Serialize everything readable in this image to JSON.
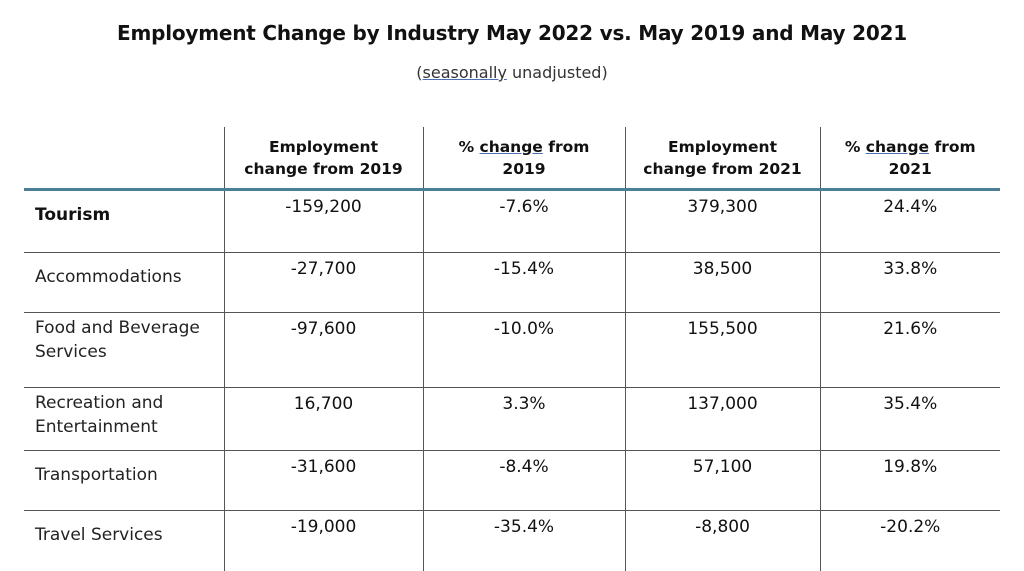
{
  "title": "Employment Change by Industry May 2022 vs. May 2019 and May 2021",
  "subtitle": {
    "underlined": "seasonally",
    "rest": " unadjusted"
  },
  "table": {
    "headers": [
      {
        "line1": "Employment",
        "line2": "change from 2019"
      },
      {
        "line1": "% change from",
        "line2": "2019"
      },
      {
        "line1": "Employment",
        "line2": "change from 2021"
      },
      {
        "line1": "% change from",
        "line2": "2021"
      }
    ],
    "rows": [
      {
        "industry": "Tourism",
        "change_2019": "-159,200",
        "pct_2019": "-7.6%",
        "change_2021": "379,300",
        "pct_2021": "24.4%"
      },
      {
        "industry": "Accommodations",
        "change_2019": "-27,700",
        "pct_2019": "-15.4%",
        "change_2021": "38,500",
        "pct_2021": "33.8%"
      },
      {
        "industry": "Food and Beverage Services",
        "change_2019": "-97,600",
        "pct_2019": "-10.0%",
        "change_2021": "155,500",
        "pct_2021": "21.6%"
      },
      {
        "industry": "Recreation and Entertainment",
        "change_2019": "16,700",
        "pct_2019": "3.3%",
        "change_2021": "137,000",
        "pct_2021": "35.4%"
      },
      {
        "industry": "Transportation",
        "change_2019": "-31,600",
        "pct_2019": "-8.4%",
        "change_2021": "57,100",
        "pct_2021": "19.8%"
      },
      {
        "industry": "Travel Services",
        "change_2019": "-19,000",
        "pct_2019": "-35.4%",
        "change_2021": "-8,800",
        "pct_2021": "-20.2%"
      }
    ]
  },
  "colors": {
    "header_rule": "#4a7f96",
    "grid_line": "#555555",
    "spellcheck_underline": "#4a6fb5"
  }
}
